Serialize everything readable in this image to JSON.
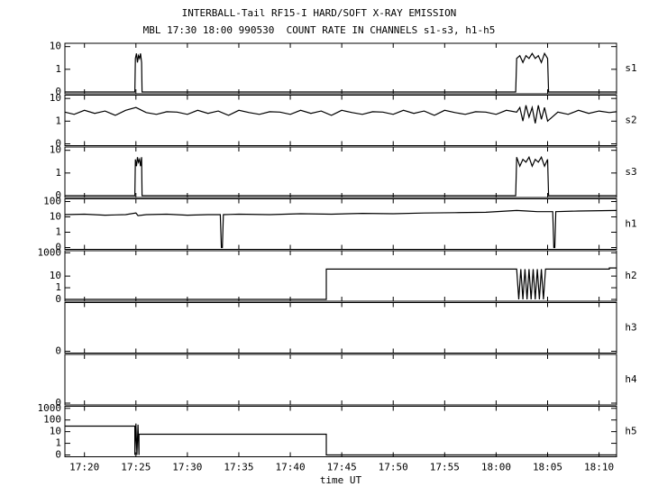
{
  "chart_data": {
    "type": "line",
    "title": "INTERBALL-Tail RF15-I HARD/SOFT X-RAY EMISSION",
    "subtitle": "MBL 17:30 18:00 990530  COUNT RATE IN CHANNELS s1-s3, h1-h5",
    "xlabel": "time UT",
    "xlim": [
      1038.1,
      1091.7
    ],
    "xticks": [
      {
        "value": 1040,
        "label": "17:20"
      },
      {
        "value": 1045,
        "label": "17:25"
      },
      {
        "value": 1050,
        "label": "17:30"
      },
      {
        "value": 1055,
        "label": "17:35"
      },
      {
        "value": 1060,
        "label": "17:40"
      },
      {
        "value": 1065,
        "label": "17:45"
      },
      {
        "value": 1070,
        "label": "17:50"
      },
      {
        "value": 1075,
        "label": "17:55"
      },
      {
        "value": 1080,
        "label": "18:00"
      },
      {
        "value": 1085,
        "label": "18:05"
      },
      {
        "value": 1090,
        "label": "18:10"
      }
    ],
    "yscale": "log",
    "color": "#000000",
    "panels": [
      {
        "name": "s1",
        "ylim": [
          0.1,
          14
        ],
        "yticks": [
          0,
          1,
          10
        ],
        "x": [
          1038.1,
          1044.9,
          1044.95,
          1045.05,
          1045.15,
          1045.25,
          1045.35,
          1045.45,
          1045.55,
          1045.6,
          1081.9,
          1082.0,
          1082.3,
          1082.6,
          1082.9,
          1083.2,
          1083.5,
          1083.8,
          1084.1,
          1084.4,
          1084.7,
          1085.0,
          1085.1,
          1091.7
        ],
        "values": [
          0,
          0,
          3,
          5,
          2,
          4,
          3,
          5,
          2,
          0,
          0,
          3,
          4,
          2,
          4,
          3,
          5,
          3,
          4,
          2,
          5,
          3,
          0,
          0
        ]
      },
      {
        "name": "s2",
        "ylim": [
          0.1,
          14
        ],
        "yticks": [
          0,
          1,
          10
        ],
        "x": [
          1038.1,
          1039,
          1040,
          1041,
          1042,
          1043,
          1044,
          1045,
          1046,
          1047,
          1048,
          1049,
          1050,
          1051,
          1052,
          1053,
          1054,
          1055,
          1056,
          1057,
          1058,
          1059,
          1060,
          1061,
          1062,
          1063,
          1064,
          1065,
          1066,
          1067,
          1068,
          1069,
          1070,
          1071,
          1072,
          1073,
          1074,
          1075,
          1076,
          1077,
          1078,
          1079,
          1080,
          1081,
          1082,
          1082.3,
          1082.6,
          1082.9,
          1083.2,
          1083.5,
          1083.8,
          1084.1,
          1084.4,
          1084.7,
          1085,
          1086,
          1087,
          1088,
          1089,
          1090,
          1091,
          1091.7
        ],
        "values": [
          2.5,
          2,
          3,
          2.2,
          2.8,
          1.8,
          3,
          4,
          2.4,
          2,
          2.6,
          2.5,
          2,
          3,
          2.2,
          2.8,
          1.8,
          3,
          2.4,
          2,
          2.6,
          2.5,
          2,
          3,
          2.2,
          2.8,
          1.8,
          3,
          2.4,
          2,
          2.6,
          2.5,
          2,
          3,
          2.2,
          2.8,
          1.8,
          3,
          2.4,
          2,
          2.6,
          2.5,
          2,
          3,
          2.5,
          4,
          1,
          5,
          1.5,
          4,
          0.8,
          5,
          1.2,
          4,
          1,
          2.5,
          2,
          3,
          2.2,
          2.8,
          2.4,
          2.6
        ]
      },
      {
        "name": "s3",
        "ylim": [
          0.1,
          14
        ],
        "yticks": [
          0,
          1,
          10
        ],
        "x": [
          1038.1,
          1044.9,
          1044.95,
          1045.05,
          1045.15,
          1045.25,
          1045.35,
          1045.45,
          1045.55,
          1045.6,
          1081.9,
          1082.0,
          1082.3,
          1082.6,
          1082.9,
          1083.2,
          1083.5,
          1083.8,
          1084.1,
          1084.4,
          1084.7,
          1085.0,
          1085.1,
          1091.7
        ],
        "values": [
          0,
          0,
          4,
          2,
          5,
          3,
          4,
          2,
          5,
          0,
          0,
          5,
          2,
          4,
          3,
          5,
          2,
          4,
          3,
          5,
          2,
          4,
          0,
          0
        ]
      },
      {
        "name": "h1",
        "ylim": [
          0.1,
          150
        ],
        "yticks": [
          0,
          1,
          10,
          100
        ],
        "x": [
          1038.1,
          1040,
          1042,
          1044,
          1045,
          1045.2,
          1046,
          1048,
          1050,
          1052,
          1053.2,
          1053.3,
          1053.4,
          1053.5,
          1055,
          1058,
          1061,
          1064,
          1067,
          1070,
          1073,
          1076,
          1079,
          1082,
          1083,
          1084,
          1085,
          1085.5,
          1085.6,
          1085.7,
          1085.8,
          1088,
          1091.7
        ],
        "values": [
          14,
          15,
          13,
          14,
          18,
          12,
          14,
          15,
          13,
          14,
          14,
          0,
          0,
          14,
          15,
          14,
          16,
          15,
          17,
          16,
          18,
          19,
          20,
          26,
          24,
          22,
          22,
          22,
          0,
          0,
          22,
          24,
          26
        ]
      },
      {
        "name": "h2",
        "ylim": [
          0.1,
          1500
        ],
        "yticks": [
          0,
          1,
          10,
          1000
        ],
        "x": [
          1038.1,
          1063.5,
          1063.5,
          1082,
          1082.2,
          1082.4,
          1082.6,
          1082.8,
          1083,
          1083.2,
          1083.4,
          1083.6,
          1083.8,
          1084,
          1084.2,
          1084.4,
          1084.6,
          1084.8,
          1085,
          1091,
          1091,
          1091.7
        ],
        "values": [
          0,
          0,
          40,
          40,
          0,
          40,
          0,
          40,
          0,
          40,
          0,
          40,
          0,
          40,
          0,
          40,
          0,
          40,
          40,
          40,
          50,
          50
        ]
      },
      {
        "name": "h3",
        "ylim": [
          0.1,
          1500
        ],
        "yticks": [
          0
        ]
      },
      {
        "name": "h4",
        "ylim": [
          0.1,
          1500
        ],
        "yticks": [
          0
        ]
      },
      {
        "name": "h5",
        "ylim": [
          0.1,
          1500
        ],
        "yticks": [
          0,
          1,
          10,
          100,
          1000
        ],
        "x": [
          1038.1,
          1044.9,
          1044.9,
          1045,
          1045.1,
          1045.2,
          1045.3,
          1045.3,
          1063.5,
          1063.5,
          1091.7
        ],
        "values": [
          30,
          30,
          0,
          50,
          0,
          40,
          0,
          6,
          6,
          0,
          0
        ]
      }
    ]
  }
}
